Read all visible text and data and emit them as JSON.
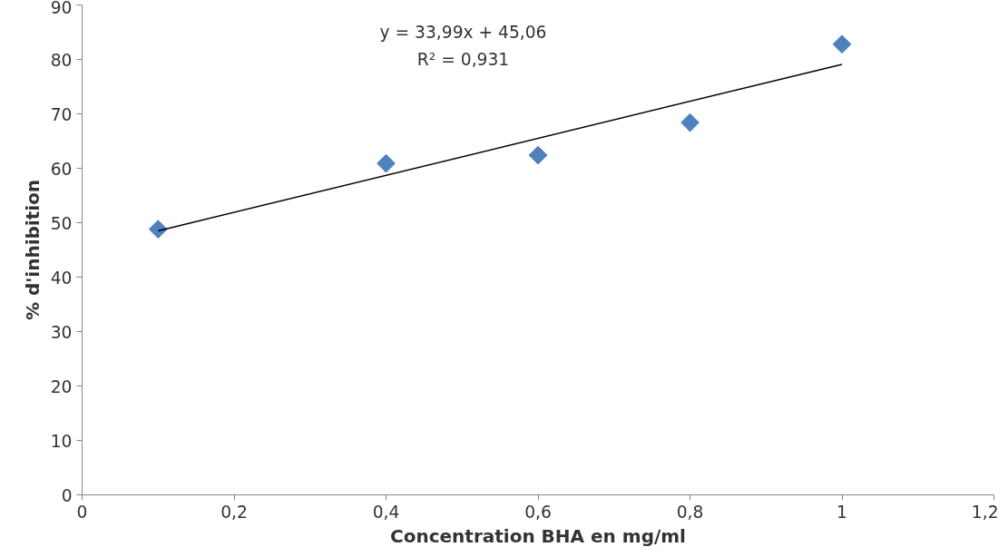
{
  "chart_data": {
    "type": "scatter",
    "xlabel": "Concentration BHA en mg/ml",
    "ylabel": "% d'inhibition",
    "series": [
      {
        "color": "#4f81bd",
        "x": [
          0.1,
          0.4,
          0.6,
          0.8,
          1.0
        ],
        "values": [
          48.8,
          60.9,
          62.4,
          68.4,
          82.8
        ],
        "marker": "diamond"
      },
      {
        "type": "line",
        "color": "#000000",
        "x": [
          0.1,
          1.0
        ],
        "values": [
          48.5,
          79.1
        ],
        "line_style": "solid"
      }
    ],
    "annotations": [
      "y = 33,99x + 45,06",
      "R² = 0,931"
    ],
    "xlim": [
      0,
      1.2
    ],
    "ylim": [
      0,
      90
    ],
    "xticks": [
      0,
      {
        "value": 0.2,
        "label": "0,2"
      },
      {
        "value": 0.4,
        "label": "0,4"
      },
      {
        "value": 0.6,
        "label": "0,6"
      },
      {
        "value": 0.8,
        "label": "0,8"
      },
      1,
      {
        "value": 1.2,
        "label": "1,2"
      }
    ],
    "yticks": [
      0,
      10,
      20,
      30,
      40,
      50,
      60,
      70,
      80,
      90
    ],
    "grid": false
  }
}
